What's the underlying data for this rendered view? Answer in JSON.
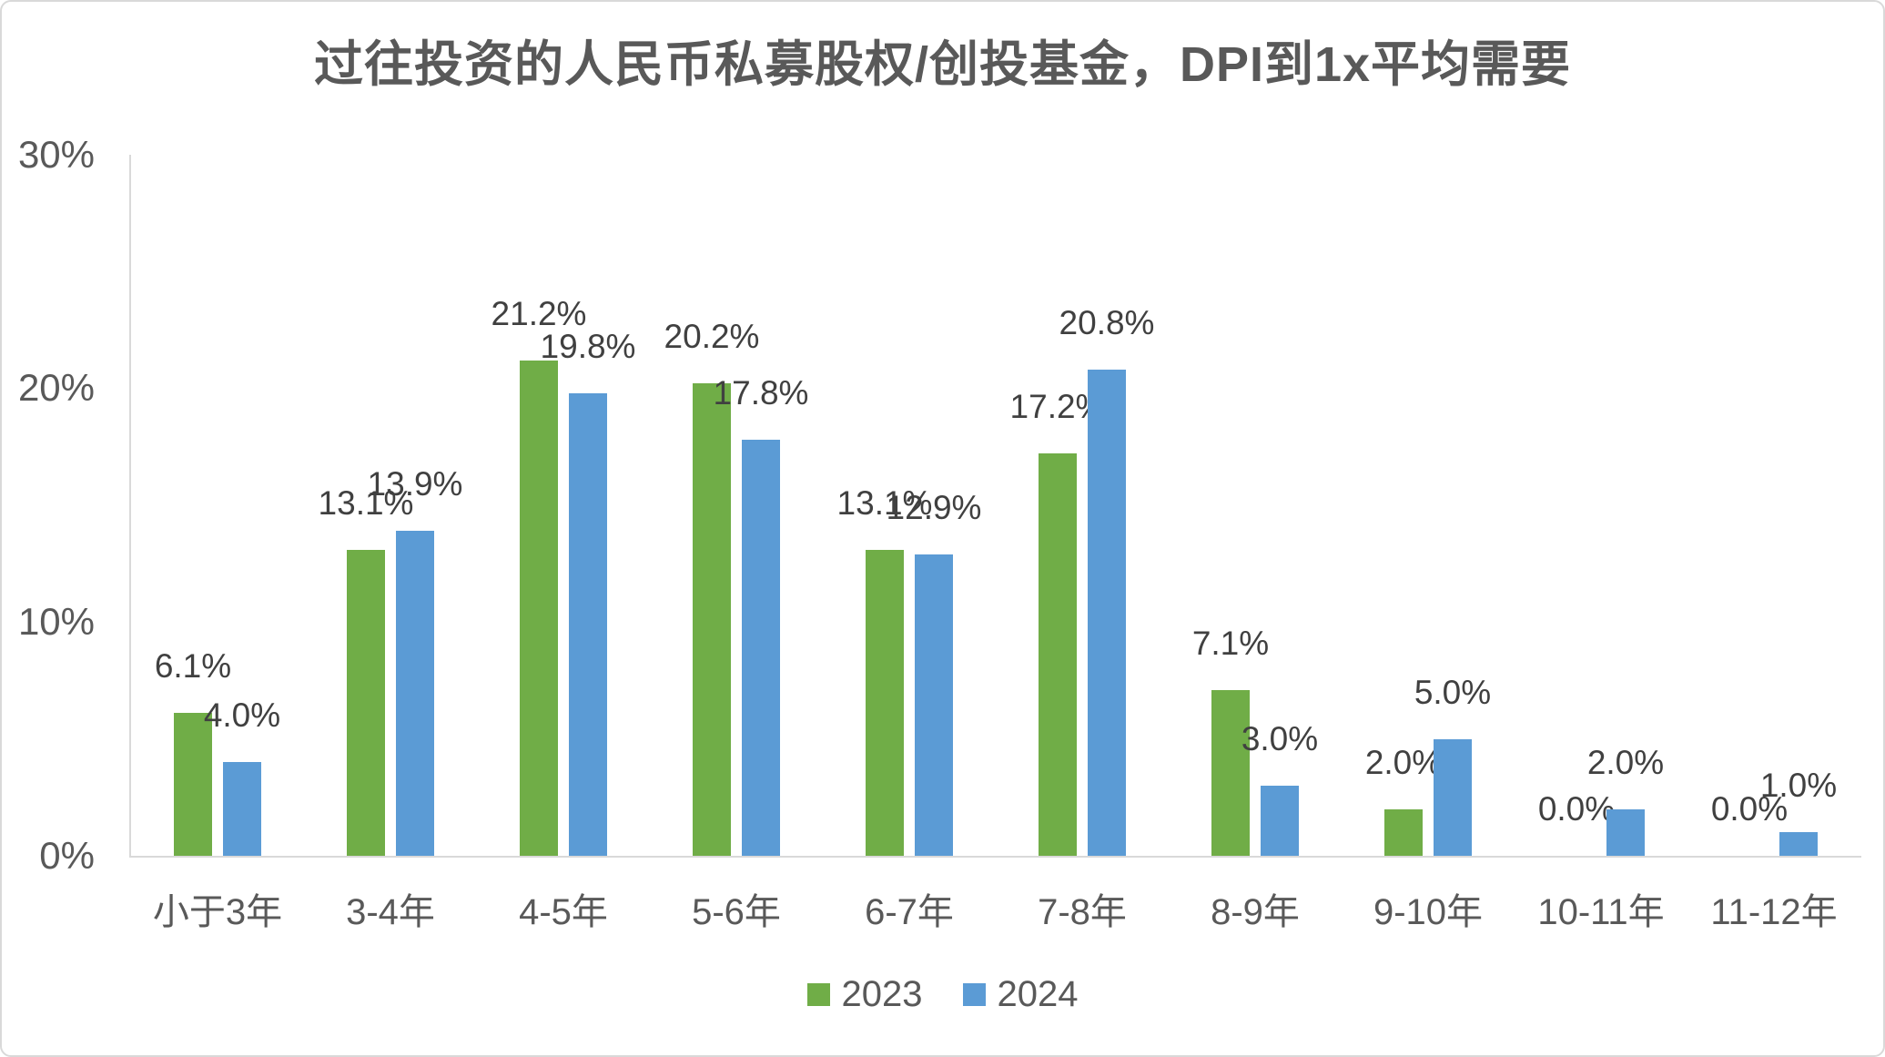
{
  "chart_data": {
    "type": "bar",
    "title": "过往投资的人民币私募股权/创投基金，DPI到1x平均需要",
    "categories": [
      "小于3年",
      "3-4年",
      "4-5年",
      "5-6年",
      "6-7年",
      "7-8年",
      "8-9年",
      "9-10年",
      "10-11年",
      "11-12年"
    ],
    "series": [
      {
        "name": "2023",
        "color": "#70AD47",
        "values": [
          6.1,
          13.1,
          21.2,
          20.2,
          13.1,
          17.2,
          7.1,
          2.0,
          0.0,
          0.0
        ],
        "labels": [
          "6.1%",
          "13.1%",
          "21.2%",
          "20.2%",
          "13.1%",
          "17.2%",
          "7.1%",
          "2.0%",
          "0.0%",
          "0.0%"
        ]
      },
      {
        "name": "2024",
        "color": "#5B9BD5",
        "values": [
          4.0,
          13.9,
          19.8,
          17.8,
          12.9,
          20.8,
          3.0,
          5.0,
          2.0,
          1.0
        ],
        "labels": [
          "4.0%",
          "13.9%",
          "19.8%",
          "17.8%",
          "12.9%",
          "20.8%",
          "3.0%",
          "5.0%",
          "2.0%",
          "1.0%"
        ]
      }
    ],
    "y_axis": {
      "ticks": [
        "0%",
        "10%",
        "20%",
        "30%"
      ],
      "tick_values": [
        0,
        10,
        20,
        30
      ],
      "ylim": [
        0,
        30
      ]
    },
    "xlabel": "",
    "ylabel": "",
    "gridlines": false,
    "legend_position": "bottom",
    "data_label_position": "outside-end"
  },
  "style": {
    "axis_line_color": "#D9D9D9",
    "tick_text_color": "#595959",
    "data_label_color": "#404040",
    "title_color": "#595959",
    "border_color": "#D9D9D9",
    "background": "#FFFFFF"
  }
}
